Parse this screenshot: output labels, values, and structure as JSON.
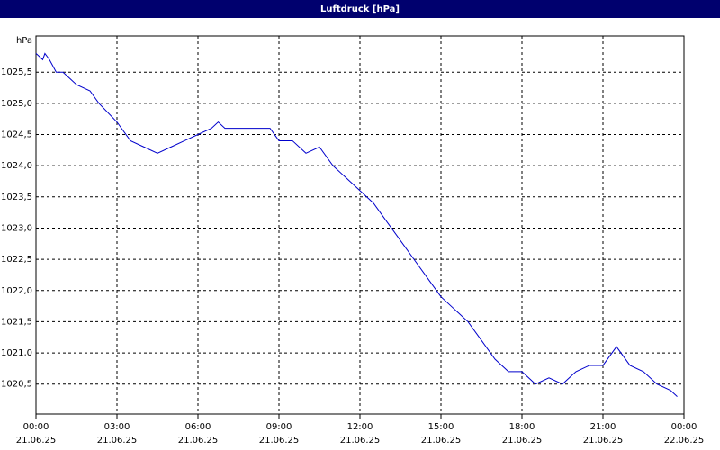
{
  "chart_data": {
    "type": "line",
    "title": "Luftdruck [hPa]",
    "y_label": "hPa",
    "x": [
      0,
      0.25,
      0.33,
      0.5,
      0.75,
      1,
      1.25,
      1.5,
      2,
      2.33,
      3,
      3.5,
      4,
      4.5,
      5,
      5.5,
      6,
      6.5,
      6.75,
      7,
      7.5,
      8,
      8.5,
      8.67,
      9,
      9.5,
      10,
      10.5,
      11,
      11.5,
      12,
      12.5,
      13,
      13.5,
      14,
      14.5,
      15,
      15.5,
      16,
      16.5,
      17,
      17.5,
      18,
      18.5,
      19,
      19.5,
      20,
      20.5,
      21,
      21.5,
      22,
      22.5,
      23,
      23.5,
      23.75
    ],
    "series": [
      {
        "name": "Luftdruck",
        "color": "#0000cc",
        "values": [
          1025.8,
          1025.7,
          1025.8,
          1025.7,
          1025.5,
          1025.5,
          1025.4,
          1025.3,
          1025.2,
          1025.0,
          1024.7,
          1024.4,
          1024.3,
          1024.2,
          1024.3,
          1024.4,
          1024.5,
          1024.6,
          1024.7,
          1024.6,
          1024.6,
          1024.6,
          1024.6,
          1024.6,
          1024.4,
          1024.4,
          1024.2,
          1024.3,
          1024.0,
          1023.8,
          1023.6,
          1023.4,
          1023.1,
          1022.8,
          1022.5,
          1022.2,
          1021.9,
          1021.7,
          1021.5,
          1021.2,
          1020.9,
          1020.7,
          1020.7,
          1020.5,
          1020.6,
          1020.5,
          1020.7,
          1020.8,
          1020.8,
          1021.1,
          1020.8,
          1020.7,
          1020.5,
          1020.4,
          1020.3
        ]
      }
    ],
    "xlim": [
      0,
      24
    ],
    "xticks": [
      {
        "value": 0,
        "label": "00:00"
      },
      {
        "value": 3,
        "label": "03:00"
      },
      {
        "value": 6,
        "label": "06:00"
      },
      {
        "value": 9,
        "label": "09:00"
      },
      {
        "value": 12,
        "label": "12:00"
      },
      {
        "value": 15,
        "label": "15:00"
      },
      {
        "value": 18,
        "label": "18:00"
      },
      {
        "value": 21,
        "label": "21:00"
      },
      {
        "value": 24,
        "label": "00:00"
      }
    ],
    "xtick_dates": [
      "21.06.25",
      "21.06.25",
      "21.06.25",
      "21.06.25",
      "21.06.25",
      "21.06.25",
      "21.06.25",
      "21.06.25",
      "22.06.25"
    ],
    "ylim": [
      1020.02,
      1026.08
    ],
    "yticks": [
      {
        "value": 1020.5,
        "label": "1020,5"
      },
      {
        "value": 1021,
        "label": "1021,0"
      },
      {
        "value": 1021.5,
        "label": "1021,5"
      },
      {
        "value": 1022,
        "label": "1022,0"
      },
      {
        "value": 1022.5,
        "label": "1022,5"
      },
      {
        "value": 1023,
        "label": "1023,0"
      },
      {
        "value": 1023.5,
        "label": "1023,5"
      },
      {
        "value": 1024,
        "label": "1024,0"
      },
      {
        "value": 1024.5,
        "label": "1024,5"
      },
      {
        "value": 1025,
        "label": "1025,0"
      },
      {
        "value": 1025.5,
        "label": "1025,5"
      }
    ],
    "grid": true
  }
}
